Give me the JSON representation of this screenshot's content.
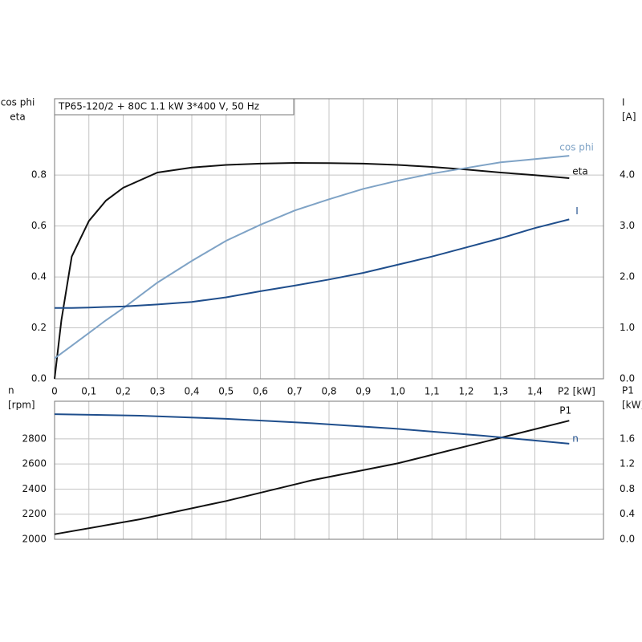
{
  "chart_data": [
    {
      "type": "line",
      "title": "TP65-120/2 + 80C  1.1 kW  3*400 V, 50 Hz",
      "x_label": "P2 [kW]",
      "y_label": [
        "cos phi",
        "eta"
      ],
      "y2_label": [
        "I",
        "[A]"
      ],
      "x": [
        0,
        0.02,
        0.05,
        0.1,
        0.15,
        0.2,
        0.3,
        0.4,
        0.5,
        0.6,
        0.7,
        0.8,
        0.9,
        1.0,
        1.1,
        1.2,
        1.3,
        1.4,
        1.5
      ],
      "series": [
        {
          "name": "eta",
          "color": "#111111",
          "values": [
            0,
            0.23,
            0.48,
            0.62,
            0.7,
            0.75,
            0.81,
            0.83,
            0.84,
            0.845,
            0.848,
            0.847,
            0.845,
            0.84,
            0.832,
            0.822,
            0.81,
            0.8,
            0.788
          ]
        },
        {
          "name": "cos phi",
          "color": "#7fa3c6",
          "values": [
            0.08,
            0.1,
            0.13,
            0.18,
            0.23,
            0.277,
            0.378,
            0.463,
            0.542,
            0.605,
            0.661,
            0.705,
            0.746,
            0.778,
            0.806,
            0.828,
            0.85,
            0.863,
            0.876
          ]
        },
        {
          "name": "I",
          "color": "#1f4e8c",
          "axis": "y2",
          "values": [
            1.39,
            1.39,
            1.39,
            1.4,
            1.41,
            1.42,
            1.46,
            1.51,
            1.6,
            1.72,
            1.83,
            1.95,
            2.08,
            2.24,
            2.4,
            2.58,
            2.76,
            2.96,
            3.13
          ]
        }
      ],
      "xlim": [
        0,
        1.6
      ],
      "xticks": [
        0,
        {
          "value": 0.1,
          "label": "0,1"
        },
        {
          "value": 0.2,
          "label": "0,2"
        },
        {
          "value": 0.3,
          "label": "0,3"
        },
        {
          "value": 0.4,
          "label": "0,4"
        },
        {
          "value": 0.5,
          "label": "0,5"
        },
        {
          "value": 0.6,
          "label": "0,6"
        },
        {
          "value": 0.7,
          "label": "0,7"
        },
        {
          "value": 0.8,
          "label": "0,8"
        },
        {
          "value": 0.9,
          "label": "0,9"
        },
        {
          "value": 1.0,
          "label": "1,0"
        },
        {
          "value": 1.1,
          "label": "1,1"
        },
        {
          "value": 1.2,
          "label": "1,2"
        },
        {
          "value": 1.3,
          "label": "1,3"
        },
        {
          "value": 1.4,
          "label": "1,4"
        }
      ],
      "ylim": [
        0,
        1.1
      ],
      "yticks": [
        {
          "value": 0,
          "label": "0.0"
        },
        0.2,
        0.4,
        0.6,
        0.8
      ],
      "y2lim": [
        0,
        5.5
      ],
      "y2ticks": [
        {
          "value": 0,
          "label": "0.0"
        },
        {
          "value": 1,
          "label": "1.0"
        },
        {
          "value": 2,
          "label": "2.0"
        },
        {
          "value": 3,
          "label": "3.0"
        },
        {
          "value": 4,
          "label": "4.0"
        }
      ],
      "grid": true
    },
    {
      "type": "line",
      "y_label": [
        "n",
        "[rpm]"
      ],
      "y2_label": [
        "P1",
        "[kW]"
      ],
      "x": [
        0,
        0.25,
        0.5,
        0.75,
        1.0,
        1.25,
        1.5
      ],
      "series": [
        {
          "name": "P1",
          "color": "#111111",
          "axis": "y2",
          "values": [
            0.08,
            0.32,
            0.61,
            0.94,
            1.21,
            1.55,
            1.89
          ]
        },
        {
          "name": "n",
          "color": "#1f4e8c",
          "values": [
            2997,
            2985,
            2960,
            2925,
            2880,
            2825,
            2762
          ]
        }
      ],
      "xlim": [
        0,
        1.6
      ],
      "ylim": [
        2000,
        3100
      ],
      "yticks": [
        2000,
        2200,
        2400,
        2600,
        2800
      ],
      "y2lim": [
        0,
        2.2
      ],
      "y2ticks": [
        {
          "value": 0,
          "label": "0.0"
        },
        {
          "value": 0.4,
          "label": "0.4"
        },
        {
          "value": 0.8,
          "label": "0.8"
        },
        {
          "value": 1.2,
          "label": "1.2"
        },
        {
          "value": 1.6,
          "label": "1.6"
        }
      ],
      "grid": true
    }
  ]
}
